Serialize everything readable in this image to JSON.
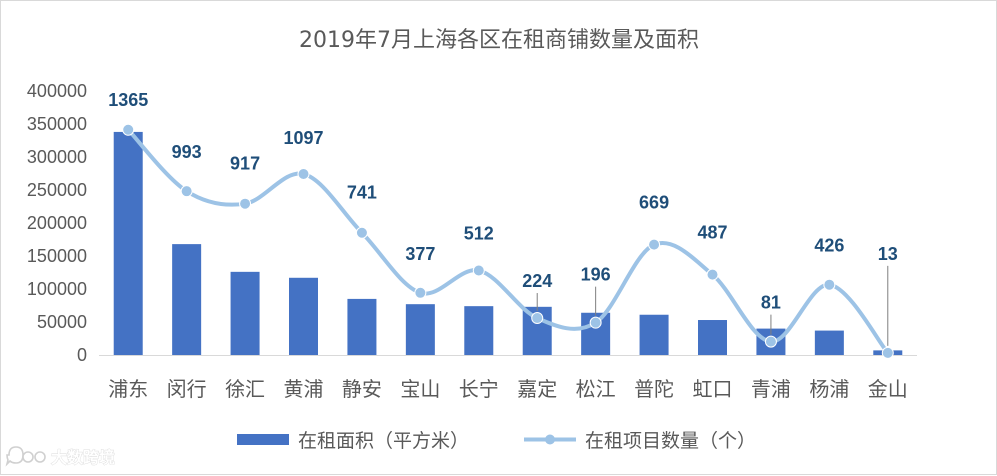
{
  "chart_data": {
    "type": "bar",
    "title": "2019年7月上海各区在租商铺数量及面积",
    "categories": [
      "浦东",
      "闵行",
      "徐汇",
      "黄浦",
      "静安",
      "宝山",
      "长宁",
      "嘉定",
      "松江",
      "普陀",
      "虹口",
      "青浦",
      "杨浦",
      "金山"
    ],
    "ylim": [
      0,
      400000
    ],
    "yticks": [
      0,
      50000,
      100000,
      150000,
      200000,
      250000,
      300000,
      350000,
      400000
    ],
    "grid": false,
    "legend_position": "bottom",
    "series": [
      {
        "name": "在租面积（平方米）",
        "type": "bar",
        "color": "#4472C4",
        "values": [
          338000,
          168000,
          126000,
          117000,
          85000,
          77000,
          74000,
          73000,
          64000,
          61000,
          53000,
          40000,
          37000,
          7000
        ]
      },
      {
        "name": "在租项目数量（个）",
        "type": "line",
        "smooth": true,
        "color": "#9DC3E6",
        "values": [
          1365,
          993,
          917,
          1097,
          741,
          377,
          512,
          224,
          196,
          669,
          487,
          81,
          426,
          13
        ],
        "data_labels": [
          "1365",
          "993",
          "917",
          "1097",
          "741",
          "377",
          "512",
          "224",
          "196",
          "669",
          "487",
          "81",
          "426",
          "13"
        ],
        "secondary_axis_max": 1600,
        "axis_visible": false
      }
    ]
  },
  "watermark": {
    "text": "大数跨境"
  }
}
